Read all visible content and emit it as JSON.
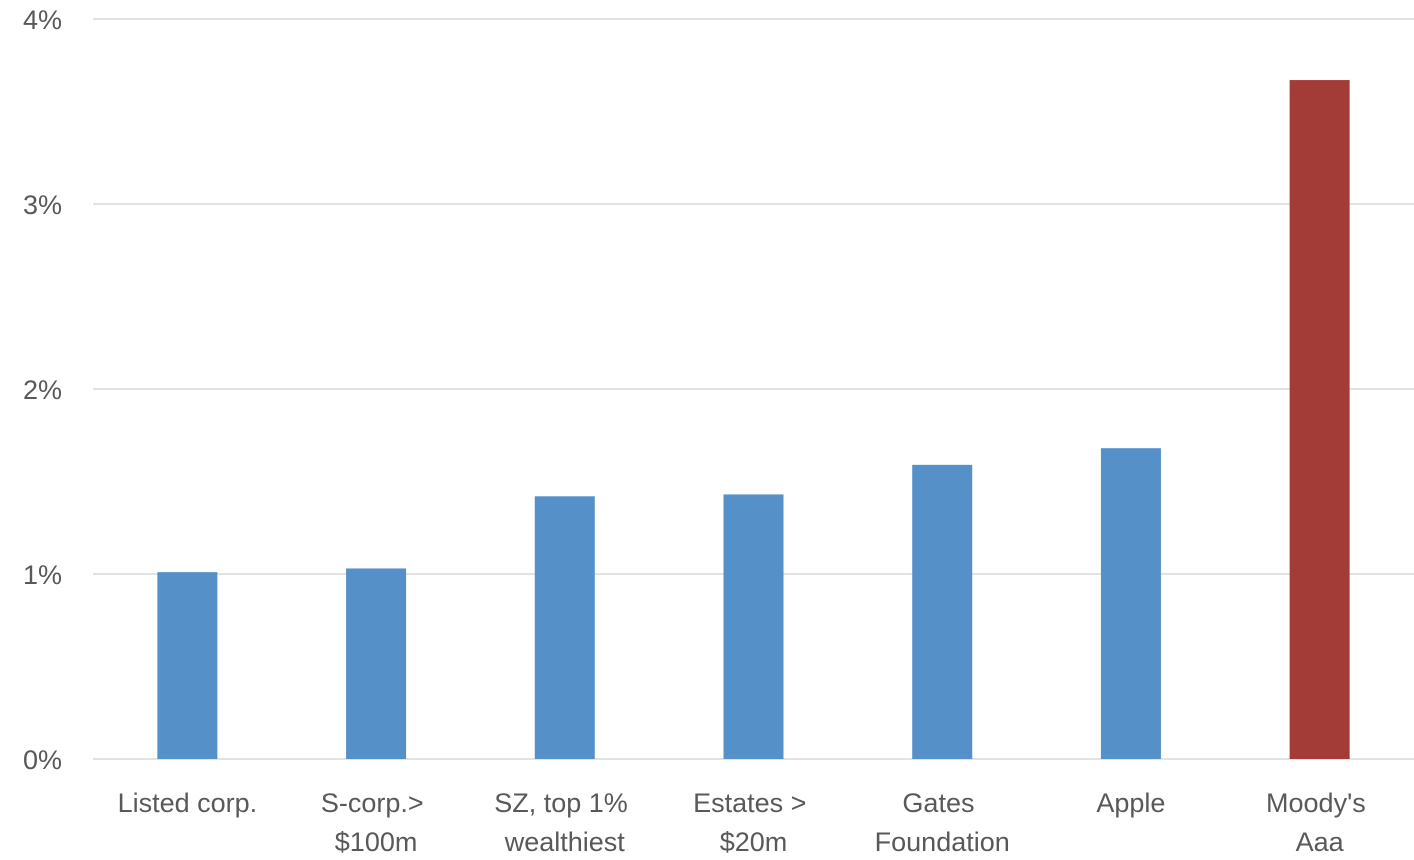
{
  "chart_data": {
    "type": "bar",
    "title": "",
    "xlabel": "",
    "ylabel": "",
    "ylim": [
      0,
      0.04
    ],
    "yticks": [
      0,
      0.01,
      0.02,
      0.03,
      0.04
    ],
    "ytick_labels": [
      "0%",
      "1%",
      "2%",
      "3%",
      "4%"
    ],
    "grid": true,
    "legend": "none",
    "categories": [
      [
        "Listed corp."
      ],
      [
        "S-corp.>",
        "$100m"
      ],
      [
        "SZ, top 1%",
        "wealthiest"
      ],
      [
        "Estates >",
        "$20m"
      ],
      [
        "Gates",
        "Foundation"
      ],
      [
        "Apple"
      ],
      [
        "Moody's",
        "Aaa"
      ]
    ],
    "values": [
      0.0101,
      0.0103,
      0.0142,
      0.0143,
      0.0159,
      0.0168,
      0.0367
    ],
    "colors": [
      "#5590c8",
      "#5590c8",
      "#5590c8",
      "#5590c8",
      "#5590c8",
      "#5590c8",
      "#a33c36"
    ]
  }
}
